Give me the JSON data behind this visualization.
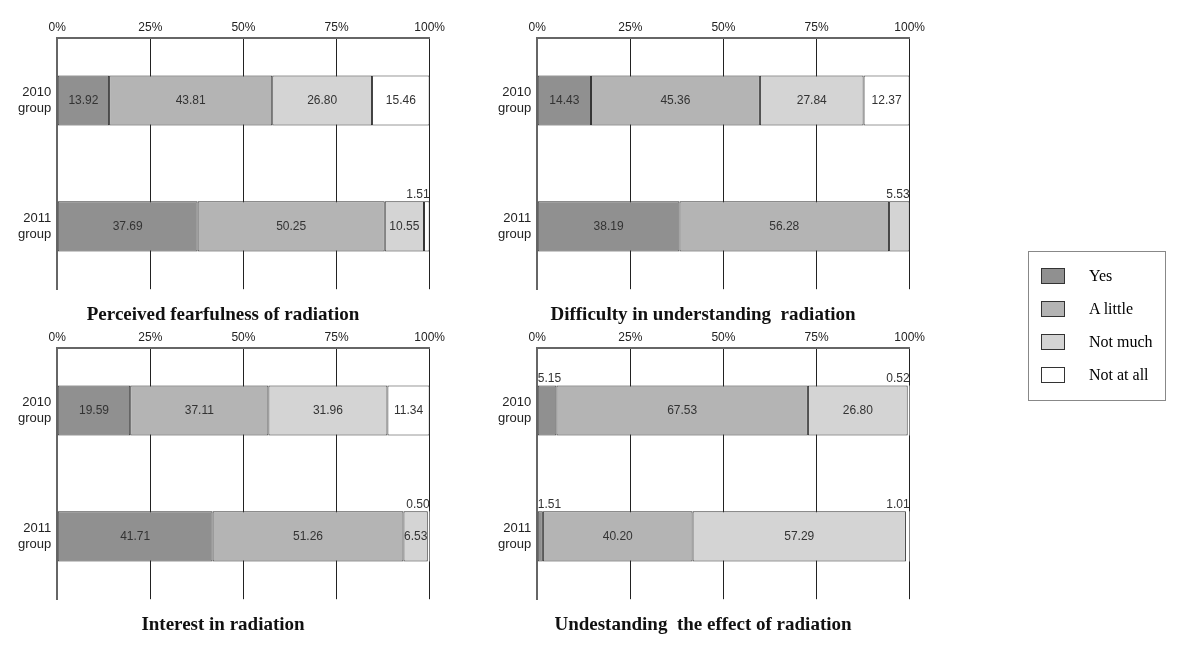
{
  "chart_data": [
    {
      "type": "bar",
      "orientation": "horizontal",
      "stacked": true,
      "title": "Perceived fearfulness of radiation",
      "categories": [
        "2010 group",
        "2011 group"
      ],
      "xlim": [
        0,
        100
      ],
      "xticks": [
        {
          "value": 0,
          "label": "0%"
        },
        {
          "value": 25,
          "label": "25%"
        },
        {
          "value": 50,
          "label": "50%"
        },
        {
          "value": 75,
          "label": "75%"
        },
        {
          "value": 100,
          "label": "100%"
        }
      ],
      "grid": "x",
      "legend": "right",
      "series": [
        {
          "name": "Yes",
          "color": "#909090",
          "values": [
            13.92,
            37.69
          ],
          "value_labels": [
            "13.92",
            "37.69"
          ]
        },
        {
          "name": "A little",
          "color": "#b4b4b4",
          "values": [
            43.81,
            50.25
          ],
          "value_labels": [
            "43.81",
            "50.25"
          ]
        },
        {
          "name": "Not much",
          "color": "#d4d4d4",
          "values": [
            26.8,
            10.55
          ],
          "value_labels": [
            "26.80",
            "10.55"
          ]
        },
        {
          "name": "Not at all",
          "color": "#ffffff",
          "values": [
            15.46,
            1.51
          ],
          "value_labels": [
            "15.46",
            "1.51"
          ]
        }
      ]
    },
    {
      "type": "bar",
      "orientation": "horizontal",
      "stacked": true,
      "title": "Difficulty in understanding  radiation",
      "categories": [
        "2010 group",
        "2011 group"
      ],
      "xlim": [
        0,
        100
      ],
      "xticks": [
        {
          "value": 0,
          "label": "0%"
        },
        {
          "value": 25,
          "label": "25%"
        },
        {
          "value": 50,
          "label": "50%"
        },
        {
          "value": 75,
          "label": "75%"
        },
        {
          "value": 100,
          "label": "100%"
        }
      ],
      "grid": "x",
      "series": [
        {
          "color": "#909090",
          "values": [
            14.43,
            38.19
          ],
          "value_labels": [
            "14.43",
            "38.19"
          ]
        },
        {
          "color": "#b4b4b4",
          "values": [
            45.36,
            56.28
          ],
          "value_labels": [
            "45.36",
            "56.28"
          ]
        },
        {
          "color": "#d4d4d4",
          "values": [
            27.84,
            5.53
          ],
          "value_labels": [
            "27.84",
            "5.53"
          ]
        },
        {
          "color": "#ffffff",
          "values": [
            12.37,
            0
          ],
          "value_labels": [
            "12.37",
            null
          ]
        }
      ]
    },
    {
      "type": "bar",
      "orientation": "horizontal",
      "stacked": true,
      "title": "Interest in radiation",
      "categories": [
        "2010 group",
        "2011 group"
      ],
      "xlim": [
        0,
        100
      ],
      "xticks": [
        {
          "value": 0,
          "label": "0%"
        },
        {
          "value": 25,
          "label": "25%"
        },
        {
          "value": 50,
          "label": "50%"
        },
        {
          "value": 75,
          "label": "75%"
        },
        {
          "value": 100,
          "label": "100%"
        }
      ],
      "grid": "x",
      "series": [
        {
          "color": "#909090",
          "values": [
            19.59,
            41.71
          ],
          "value_labels": [
            "19.59",
            "41.71"
          ]
        },
        {
          "color": "#b4b4b4",
          "values": [
            37.11,
            51.26
          ],
          "value_labels": [
            "37.11",
            "51.26"
          ]
        },
        {
          "color": "#d4d4d4",
          "values": [
            31.96,
            6.53
          ],
          "value_labels": [
            "31.96",
            "6.53"
          ]
        },
        {
          "color": "#ffffff",
          "values": [
            11.34,
            0.5
          ],
          "value_labels": [
            "11.34",
            "0.50"
          ]
        }
      ]
    },
    {
      "type": "bar",
      "orientation": "horizontal",
      "stacked": true,
      "title": "Undestanding  the effect of radiation",
      "categories": [
        "2010 group",
        "2011 group"
      ],
      "xlim": [
        0,
        100
      ],
      "xticks": [
        {
          "value": 0,
          "label": "0%"
        },
        {
          "value": 25,
          "label": "25%"
        },
        {
          "value": 50,
          "label": "50%"
        },
        {
          "value": 75,
          "label": "75%"
        },
        {
          "value": 100,
          "label": "100%"
        }
      ],
      "grid": "x",
      "series": [
        {
          "color": "#909090",
          "values": [
            5.15,
            1.51
          ],
          "value_labels": [
            "5.15",
            "1.51"
          ]
        },
        {
          "color": "#b4b4b4",
          "values": [
            67.53,
            40.2
          ],
          "value_labels": [
            "67.53",
            "40.20"
          ]
        },
        {
          "color": "#d4d4d4",
          "values": [
            26.8,
            57.29
          ],
          "value_labels": [
            "26.80",
            "57.29"
          ]
        },
        {
          "color": "#ffffff",
          "values": [
            0.52,
            1.01
          ],
          "value_labels": [
            "0.52",
            "1.01"
          ]
        }
      ]
    }
  ]
}
